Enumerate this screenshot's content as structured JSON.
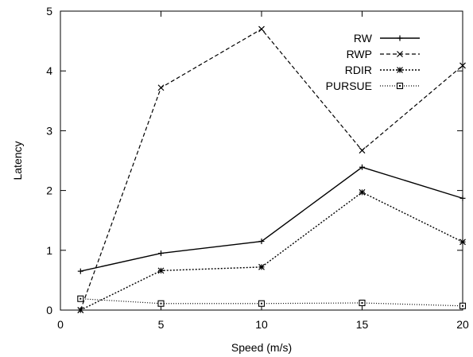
{
  "chart_data": {
    "type": "line",
    "title": "",
    "xlabel": "Speed (m/s)",
    "ylabel": "Latency",
    "xlim": [
      0,
      20
    ],
    "ylim": [
      0,
      5
    ],
    "xticks": [
      0,
      5,
      10,
      15,
      20
    ],
    "yticks": [
      0,
      1,
      2,
      3,
      4,
      5
    ],
    "grid": false,
    "legend_position": "top-right",
    "series": [
      {
        "name": "RW",
        "x": [
          1,
          5,
          10,
          15,
          20
        ],
        "values": [
          0.65,
          0.95,
          1.15,
          2.39,
          1.87
        ],
        "dash": "solid",
        "marker": "plus"
      },
      {
        "name": "RWP",
        "x": [
          1,
          5,
          10,
          15,
          20
        ],
        "values": [
          0.0,
          3.72,
          4.7,
          2.67,
          4.09
        ],
        "dash": "dashed",
        "marker": "cross"
      },
      {
        "name": "RDIR",
        "x": [
          1,
          5,
          10,
          15,
          20
        ],
        "values": [
          0.0,
          0.66,
          0.72,
          1.97,
          1.14
        ],
        "dash": "dotted",
        "marker": "star"
      },
      {
        "name": "PURSUE",
        "x": [
          1,
          5,
          10,
          15,
          20
        ],
        "values": [
          0.19,
          0.11,
          0.11,
          0.12,
          0.07
        ],
        "dash": "fine-dotted",
        "marker": "square"
      }
    ]
  }
}
